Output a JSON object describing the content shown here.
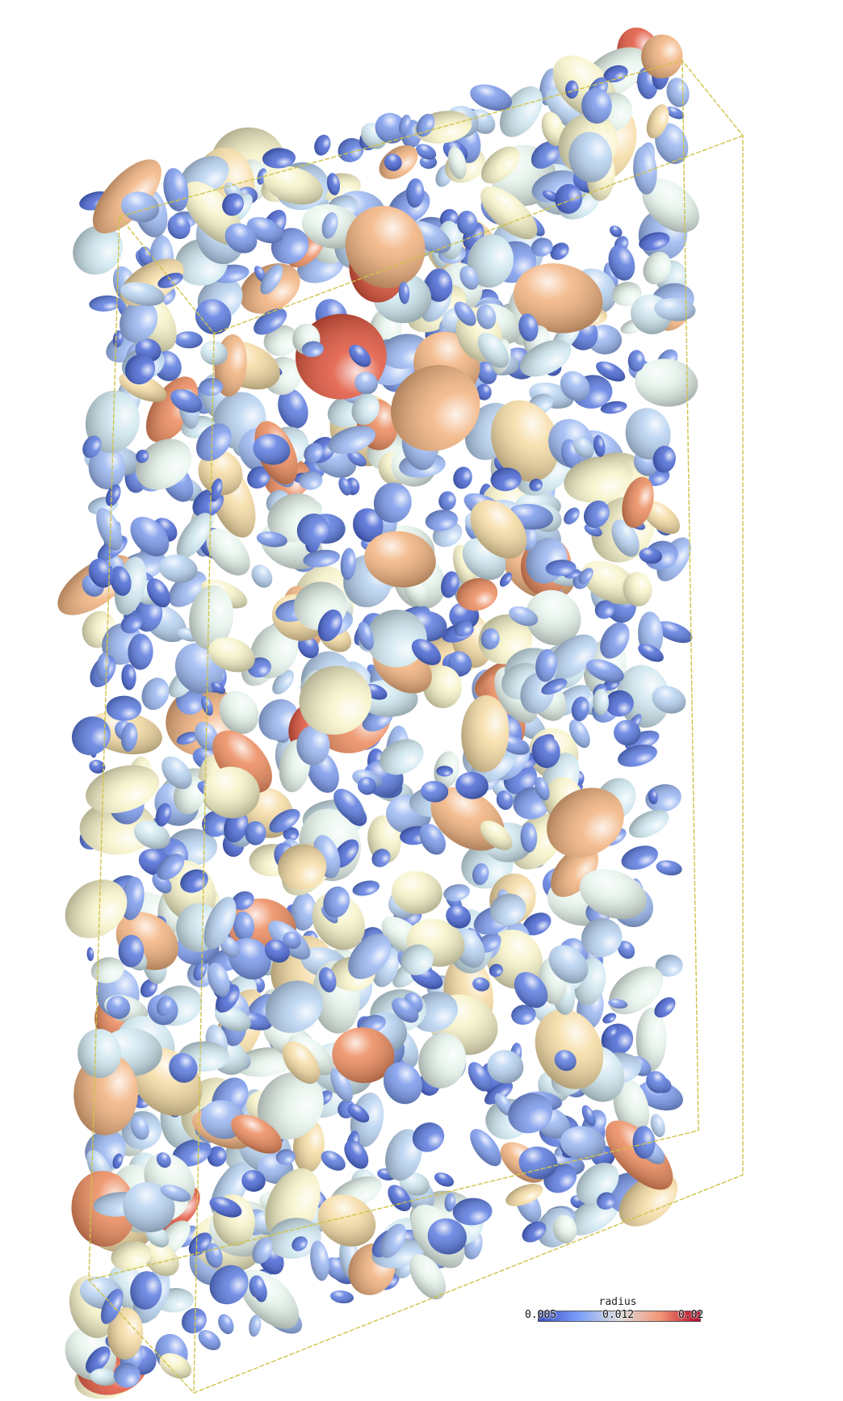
{
  "scene": {
    "colormap": {
      "low": "#3b4cc0",
      "mid": "#dddddd",
      "high": "#d8152f"
    },
    "box_color": "#cfc34a",
    "background": "#ffffff"
  },
  "colorbar": {
    "title": "radius",
    "min_label": "0.005",
    "mid_label": "0.012",
    "max_label": "0.02",
    "min": 0.005,
    "mid": 0.012,
    "max": 0.02
  }
}
